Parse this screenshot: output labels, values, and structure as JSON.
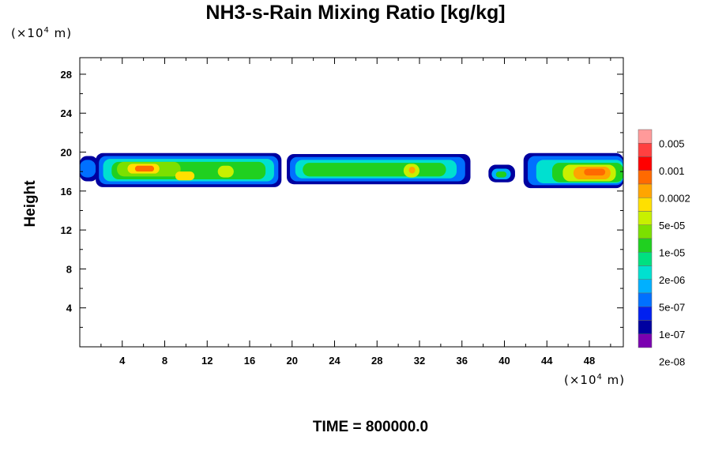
{
  "chart_data": {
    "type": "heatmap",
    "title": "NH3-s-Rain Mixing Ratio [kg/kg]",
    "ylabel": "Height",
    "x_unit": {
      "prefix": "(×10",
      "exp": "4",
      "suffix": " m)"
    },
    "y_unit": {
      "prefix": "(×10",
      "exp": "4",
      "suffix": " m)"
    },
    "xlim": [
      0,
      51.2
    ],
    "ylim": [
      0,
      29.7
    ],
    "x_ticks": [
      "4",
      "8",
      "12",
      "16",
      "20",
      "24",
      "28",
      "32",
      "36",
      "40",
      "44",
      "48"
    ],
    "y_ticks": [
      "4",
      "8",
      "12",
      "16",
      "20",
      "24",
      "28"
    ],
    "colorbar": {
      "labels": [
        "0.005",
        "0.001",
        "0.0002",
        "5e-05",
        "1e-05",
        "2e-06",
        "5e-07",
        "1e-07",
        "2e-08"
      ],
      "colors": [
        "#ff9a9a",
        "#ff4040",
        "#ff0000",
        "#ff6a00",
        "#ffa500",
        "#ffe000",
        "#c8f000",
        "#7ce000",
        "#20d020",
        "#00e080",
        "#00e0d0",
        "#00b0ff",
        "#0070ff",
        "#0020f0",
        "#0000a0",
        "#7a00b0"
      ]
    },
    "cells": [
      {
        "x0": 0.0,
        "x1": 1.7,
        "y0": 17.0,
        "y1": 19.6,
        "level": 14
      },
      {
        "x0": 0.0,
        "x1": 1.5,
        "y0": 17.4,
        "y1": 19.2,
        "level": 12
      },
      {
        "x0": 1.5,
        "x1": 19.0,
        "y0": 16.4,
        "y1": 19.9,
        "level": 14
      },
      {
        "x0": 1.8,
        "x1": 18.7,
        "y0": 16.7,
        "y1": 19.6,
        "level": 12
      },
      {
        "x0": 2.2,
        "x1": 18.3,
        "y0": 17.0,
        "y1": 19.3,
        "level": 10
      },
      {
        "x0": 3.0,
        "x1": 17.5,
        "y0": 17.2,
        "y1": 19.0,
        "level": 8
      },
      {
        "x0": 3.5,
        "x1": 9.5,
        "y0": 17.5,
        "y1": 19.0,
        "level": 7
      },
      {
        "x0": 4.5,
        "x1": 7.5,
        "y0": 17.8,
        "y1": 18.8,
        "level": 5
      },
      {
        "x0": 5.2,
        "x1": 7.0,
        "y0": 18.0,
        "y1": 18.6,
        "level": 3
      },
      {
        "x0": 9.0,
        "x1": 10.8,
        "y0": 17.1,
        "y1": 18.0,
        "level": 5
      },
      {
        "x0": 13.0,
        "x1": 14.5,
        "y0": 17.4,
        "y1": 18.6,
        "level": 6
      },
      {
        "x0": 19.5,
        "x1": 36.8,
        "y0": 16.7,
        "y1": 19.8,
        "level": 14
      },
      {
        "x0": 19.8,
        "x1": 36.3,
        "y0": 17.0,
        "y1": 19.5,
        "level": 12
      },
      {
        "x0": 20.3,
        "x1": 35.5,
        "y0": 17.3,
        "y1": 19.2,
        "level": 10
      },
      {
        "x0": 21.0,
        "x1": 34.5,
        "y0": 17.5,
        "y1": 18.9,
        "level": 8
      },
      {
        "x0": 30.5,
        "x1": 32.0,
        "y0": 17.4,
        "y1": 18.8,
        "level": 6
      },
      {
        "x0": 31.0,
        "x1": 31.6,
        "y0": 17.8,
        "y1": 18.5,
        "level": 4
      },
      {
        "x0": 38.5,
        "x1": 41.0,
        "y0": 16.9,
        "y1": 18.7,
        "level": 14
      },
      {
        "x0": 38.8,
        "x1": 40.6,
        "y0": 17.2,
        "y1": 18.3,
        "level": 11
      },
      {
        "x0": 39.2,
        "x1": 40.2,
        "y0": 17.4,
        "y1": 18.0,
        "level": 8
      },
      {
        "x0": 41.8,
        "x1": 51.2,
        "y0": 16.3,
        "y1": 19.9,
        "level": 14
      },
      {
        "x0": 42.2,
        "x1": 51.2,
        "y0": 16.6,
        "y1": 19.6,
        "level": 12
      },
      {
        "x0": 43.0,
        "x1": 51.2,
        "y0": 16.8,
        "y1": 19.2,
        "level": 10
      },
      {
        "x0": 44.5,
        "x1": 51.2,
        "y0": 16.9,
        "y1": 18.9,
        "level": 8
      },
      {
        "x0": 45.5,
        "x1": 50.5,
        "y0": 17.0,
        "y1": 18.7,
        "level": 6
      },
      {
        "x0": 46.5,
        "x1": 50.0,
        "y0": 17.2,
        "y1": 18.5,
        "level": 4
      },
      {
        "x0": 47.5,
        "x1": 49.5,
        "y0": 17.6,
        "y1": 18.3,
        "level": 3
      }
    ]
  },
  "time_label": "TIME = 800000.0"
}
